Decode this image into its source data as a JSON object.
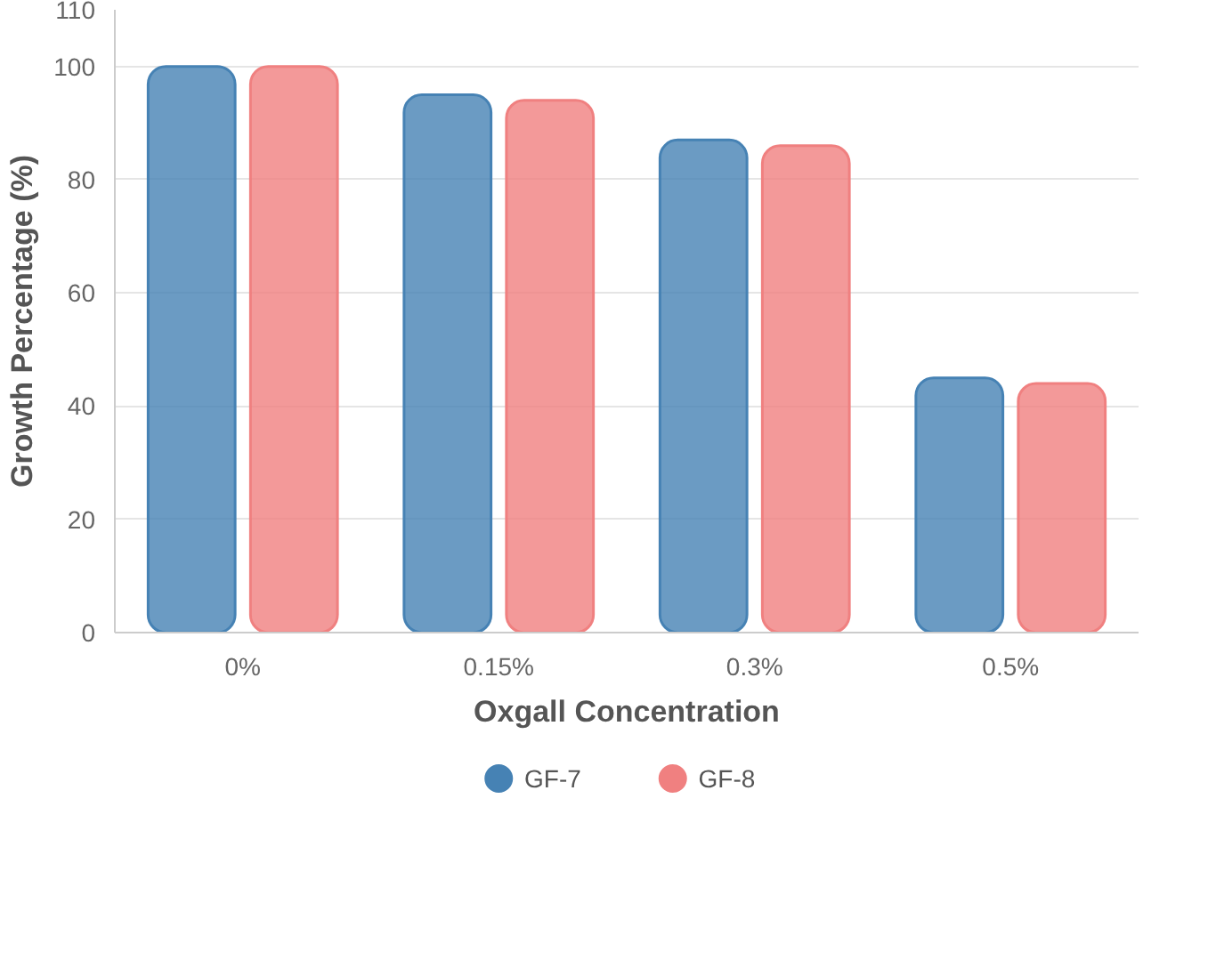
{
  "chart_data": {
    "type": "bar",
    "xlabel": "Oxgall Concentration",
    "ylabel": "Growth Percentage (%)",
    "categories": [
      "0%",
      "0.15%",
      "0.3%",
      "0.5%"
    ],
    "series": [
      {
        "name": "GF-7",
        "color": "#4682b4",
        "values": [
          100,
          95,
          87,
          45
        ]
      },
      {
        "name": "GF-8",
        "color": "#f08080",
        "values": [
          100,
          94,
          86,
          44
        ]
      }
    ],
    "ylim": [
      0,
      110
    ],
    "yticks": [
      0,
      20,
      40,
      60,
      80,
      100,
      110
    ],
    "grid": "y",
    "legend": "bottom"
  }
}
